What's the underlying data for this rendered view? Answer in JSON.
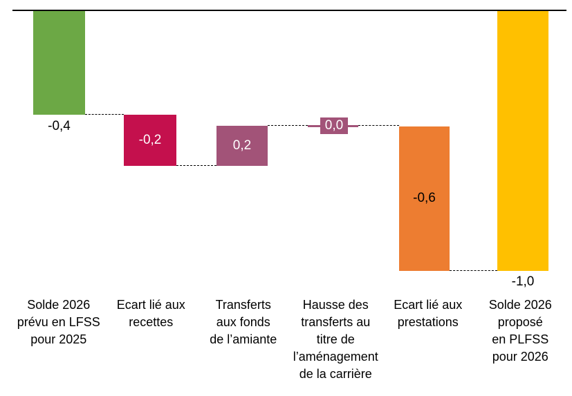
{
  "chart_data": {
    "type": "bar",
    "subtype": "waterfall",
    "title": "",
    "categories": [
      "Solde 2026 prévu en LFSS pour 2025",
      "Ecart lié aux recettes",
      "Transferts aux fonds de l’amiante",
      "Hausse des transferts au titre de l’aménagement de la carrière",
      "Ecart lié aux prestations",
      "Solde 2026 proposé en PLFSS pour 2026"
    ],
    "values": [
      -0.4,
      -0.2,
      0.2,
      0.0,
      -0.6,
      -1.0
    ],
    "value_labels": [
      "-0,4",
      "-0,2",
      "0,2",
      "0,0",
      "-0,6",
      "-1,0"
    ],
    "cumulative": [
      -0.4,
      -0.6,
      -0.4,
      -0.4,
      -1.0,
      -1.0
    ],
    "baseline": 0,
    "legend": "none",
    "grid": "off",
    "axis": {
      "zero_line_color": "#000000",
      "connector_color": "#000000",
      "connector_style": "dashed"
    },
    "bars": [
      {
        "name": "solde-2026-lfss-2025",
        "lines": [
          "Solde 2026",
          "prévu en LFSS",
          "pour 2025"
        ],
        "value": -0.4,
        "start": 0,
        "end": -0.4,
        "value_label": "-0,4",
        "label_placement": "below",
        "color": "#6CA845",
        "label_color": "#000000"
      },
      {
        "name": "ecart-recettes",
        "lines": [
          "Ecart lié aux",
          "recettes"
        ],
        "value": -0.2,
        "start": -0.4,
        "end": -0.6,
        "value_label": "-0,2",
        "label_placement": "inside",
        "color": "#C4104D",
        "label_color": "#ffffff"
      },
      {
        "name": "transferts-fonds-amiante",
        "lines": [
          "Transferts",
          "aux fonds",
          "de l’amiante"
        ],
        "value": 0.2,
        "start": -0.6,
        "end": -0.4,
        "value_label": "0,2",
        "label_placement": "inside",
        "color": "#A25378",
        "label_color": "#ffffff"
      },
      {
        "name": "hausse-transferts-amenagement-carriere",
        "lines": [
          "Hausse des",
          "transferts au",
          "titre de",
          "l’aménagement",
          "de la carrière"
        ],
        "value": 0.0,
        "start": -0.4,
        "end": -0.4,
        "value_label": "0,0",
        "label_placement": "inside",
        "color": "#A25378",
        "label_color": "#ffffff"
      },
      {
        "name": "ecart-prestations",
        "lines": [
          "Ecart lié aux",
          "prestations"
        ],
        "value": -0.6,
        "start": -0.4,
        "end": -1.0,
        "value_label": "-0,6",
        "label_placement": "inside",
        "color": "#ED7D31",
        "label_color": "#000000"
      },
      {
        "name": "solde-2026-plfss-2026",
        "lines": [
          "Solde 2026",
          "proposé",
          "en PLFSS",
          "pour 2026"
        ],
        "value": -1.0,
        "start": 0,
        "end": -1.0,
        "value_label": "-1,0",
        "label_placement": "below",
        "color": "#FFC000",
        "label_color": "#000000"
      }
    ]
  }
}
